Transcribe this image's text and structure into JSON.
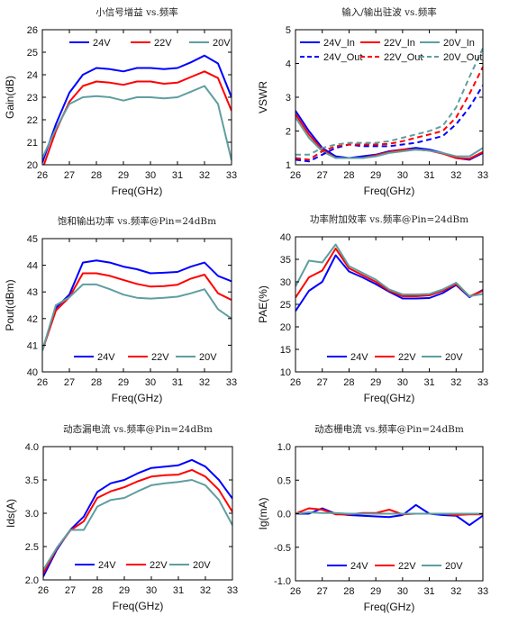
{
  "chart_data": [
    {
      "type": "line",
      "title": "小信号增益 vs.频率",
      "xlabel": "Freq(GHz)",
      "ylabel": "Gain(dB)",
      "xlim": [
        26,
        33
      ],
      "ylim": [
        20,
        26
      ],
      "xticks": [
        26,
        27,
        28,
        29,
        30,
        31,
        32,
        33
      ],
      "yticks": [
        20,
        21,
        22,
        23,
        24,
        25,
        26
      ],
      "legend": "top",
      "x": [
        26,
        26.5,
        27,
        27.5,
        28,
        28.5,
        29,
        29.5,
        30,
        30.5,
        31,
        31.5,
        32,
        32.5,
        33
      ],
      "series": [
        {
          "name": "24V",
          "color": "#0000ff",
          "dash": "solid",
          "values": [
            20.1,
            21.8,
            23.2,
            24.0,
            24.3,
            24.25,
            24.15,
            24.3,
            24.3,
            24.25,
            24.3,
            24.55,
            24.85,
            24.5,
            23.0
          ]
        },
        {
          "name": "22V",
          "color": "#ff0000",
          "dash": "solid",
          "values": [
            19.8,
            21.5,
            22.8,
            23.5,
            23.7,
            23.65,
            23.55,
            23.7,
            23.7,
            23.6,
            23.65,
            23.9,
            24.15,
            23.85,
            22.4
          ]
        },
        {
          "name": "20V",
          "color": "#5f9ea0",
          "dash": "solid",
          "values": [
            20.3,
            21.6,
            22.7,
            23.0,
            23.05,
            23.0,
            22.85,
            23.0,
            23.0,
            22.95,
            23.0,
            23.25,
            23.5,
            22.7,
            20.2
          ]
        }
      ]
    },
    {
      "type": "line",
      "title": "输入/输出驻波 vs.频率",
      "xlabel": "Freq(GHz)",
      "ylabel": "VSWR",
      "xlim": [
        26,
        33
      ],
      "ylim": [
        1,
        5
      ],
      "xticks": [
        26,
        27,
        28,
        29,
        30,
        31,
        32,
        33
      ],
      "yticks": [
        1,
        2,
        3,
        4,
        5
      ],
      "legend": "top",
      "x": [
        26,
        26.5,
        27,
        27.5,
        28,
        28.5,
        29,
        29.5,
        30,
        30.5,
        31,
        31.5,
        32,
        32.5,
        33
      ],
      "series": [
        {
          "name": "24V_In",
          "color": "#0000ff",
          "dash": "solid",
          "values": [
            2.6,
            2.0,
            1.5,
            1.25,
            1.2,
            1.25,
            1.3,
            1.4,
            1.45,
            1.5,
            1.45,
            1.35,
            1.2,
            1.15,
            1.35
          ]
        },
        {
          "name": "22V_In",
          "color": "#ff0000",
          "dash": "solid",
          "values": [
            2.5,
            1.9,
            1.45,
            1.2,
            1.2,
            1.2,
            1.28,
            1.38,
            1.45,
            1.45,
            1.42,
            1.33,
            1.2,
            1.18,
            1.38
          ]
        },
        {
          "name": "20V_In",
          "color": "#5f9ea0",
          "dash": "solid",
          "values": [
            2.4,
            1.8,
            1.4,
            1.2,
            1.2,
            1.2,
            1.25,
            1.35,
            1.4,
            1.45,
            1.42,
            1.35,
            1.25,
            1.25,
            1.5
          ]
        },
        {
          "name": "24V_Out",
          "color": "#0000ff",
          "dash": "dashed",
          "values": [
            1.15,
            1.1,
            1.3,
            1.5,
            1.6,
            1.55,
            1.55,
            1.55,
            1.6,
            1.65,
            1.75,
            1.85,
            2.2,
            2.7,
            3.35
          ]
        },
        {
          "name": "22V_Out",
          "color": "#ff0000",
          "dash": "dashed",
          "values": [
            1.2,
            1.15,
            1.4,
            1.55,
            1.6,
            1.6,
            1.6,
            1.62,
            1.7,
            1.8,
            1.9,
            2.0,
            2.4,
            3.1,
            3.9
          ]
        },
        {
          "name": "20V_Out",
          "color": "#5f9ea0",
          "dash": "dashed",
          "values": [
            1.3,
            1.3,
            1.5,
            1.6,
            1.65,
            1.65,
            1.65,
            1.7,
            1.8,
            1.9,
            2.0,
            2.15,
            2.7,
            3.6,
            4.45
          ]
        }
      ]
    },
    {
      "type": "line",
      "title": "饱和输出功率 vs.频率@Pin=24dBm",
      "xlabel": "Freq(GHz)",
      "ylabel": "Pout(dBm)",
      "xlim": [
        26,
        33
      ],
      "ylim": [
        40,
        45
      ],
      "xticks": [
        26,
        27,
        28,
        29,
        30,
        31,
        32,
        33
      ],
      "yticks": [
        40,
        41,
        42,
        43,
        44,
        45
      ],
      "legend": "bottom",
      "x": [
        26,
        26.5,
        27,
        27.5,
        28,
        28.5,
        29,
        29.5,
        30,
        30.5,
        31,
        31.5,
        32,
        32.5,
        33
      ],
      "series": [
        {
          "name": "24V",
          "color": "#0000ff",
          "dash": "solid",
          "values": [
            40.8,
            42.4,
            42.9,
            44.1,
            44.18,
            44.1,
            43.95,
            43.85,
            43.7,
            43.72,
            43.75,
            43.95,
            44.1,
            43.6,
            43.4
          ]
        },
        {
          "name": "22V",
          "color": "#ff0000",
          "dash": "solid",
          "values": [
            40.8,
            42.3,
            42.8,
            43.7,
            43.7,
            43.6,
            43.45,
            43.3,
            43.2,
            43.22,
            43.27,
            43.5,
            43.65,
            42.95,
            42.7
          ]
        },
        {
          "name": "20V",
          "color": "#5f9ea0",
          "dash": "solid",
          "values": [
            40.8,
            42.5,
            42.8,
            43.28,
            43.28,
            43.1,
            42.9,
            42.78,
            42.75,
            42.78,
            42.82,
            42.95,
            43.1,
            42.35,
            42.0
          ]
        }
      ]
    },
    {
      "type": "line",
      "title": "功率附加效率 vs.频率@Pin=24dBm",
      "xlabel": "Freq(GHz)",
      "ylabel": "PAE(%)",
      "xlim": [
        26,
        33
      ],
      "ylim": [
        10,
        40
      ],
      "xticks": [
        26,
        27,
        28,
        29,
        30,
        31,
        32,
        33
      ],
      "yticks": [
        10,
        15,
        20,
        25,
        30,
        35,
        40
      ],
      "legend": "bottom",
      "x": [
        26,
        26.5,
        27,
        27.5,
        28,
        28.5,
        29,
        29.5,
        30,
        30.5,
        31,
        31.5,
        32,
        32.5,
        33
      ],
      "series": [
        {
          "name": "24V",
          "color": "#0000ff",
          "dash": "solid",
          "values": [
            23.5,
            28.0,
            30.0,
            35.9,
            32.3,
            31.0,
            29.5,
            27.8,
            26.3,
            26.3,
            26.4,
            27.5,
            29.3,
            26.6,
            28.2
          ]
        },
        {
          "name": "22V",
          "color": "#ff0000",
          "dash": "solid",
          "values": [
            26.5,
            31.0,
            32.5,
            37.4,
            33.0,
            31.5,
            30.0,
            28.0,
            26.8,
            26.8,
            27.0,
            28.0,
            29.5,
            26.8,
            28.0
          ]
        },
        {
          "name": "20V",
          "color": "#5f9ea0",
          "dash": "solid",
          "values": [
            29.0,
            34.7,
            34.3,
            38.3,
            33.5,
            32.0,
            30.5,
            28.3,
            27.2,
            27.2,
            27.3,
            28.3,
            29.8,
            26.8,
            27.3
          ]
        }
      ]
    },
    {
      "type": "line",
      "title": "动态漏电流 vs.频率@Pin=24dBm",
      "xlabel": "Freq(GHz)",
      "ylabel": "Ids(A)",
      "xlim": [
        26,
        33
      ],
      "ylim": [
        2.0,
        4.0
      ],
      "xticks": [
        26,
        27,
        28,
        29,
        30,
        31,
        32,
        33
      ],
      "yticks": [
        2.0,
        2.5,
        3.0,
        3.5,
        4.0
      ],
      "ytick_labels": [
        "2.0",
        "2.5",
        "3.0",
        "3.5",
        "4.0"
      ],
      "legend": "bottom",
      "x": [
        26,
        26.5,
        27,
        27.5,
        28,
        28.5,
        29,
        29.5,
        30,
        30.5,
        31,
        31.5,
        32,
        32.5,
        33
      ],
      "series": [
        {
          "name": "24V",
          "color": "#0000ff",
          "dash": "solid",
          "values": [
            2.05,
            2.45,
            2.75,
            2.95,
            3.32,
            3.45,
            3.5,
            3.6,
            3.68,
            3.7,
            3.72,
            3.8,
            3.7,
            3.5,
            3.22
          ]
        },
        {
          "name": "22V",
          "color": "#ff0000",
          "dash": "solid",
          "values": [
            2.1,
            2.47,
            2.74,
            2.88,
            3.23,
            3.33,
            3.39,
            3.48,
            3.55,
            3.57,
            3.58,
            3.65,
            3.55,
            3.35,
            3.02
          ]
        },
        {
          "name": "20V",
          "color": "#5f9ea0",
          "dash": "solid",
          "values": [
            2.15,
            2.48,
            2.75,
            2.75,
            3.1,
            3.2,
            3.23,
            3.33,
            3.42,
            3.45,
            3.47,
            3.5,
            3.42,
            3.2,
            2.82
          ]
        }
      ]
    },
    {
      "type": "line",
      "title": "动态栅电流 vs.频率@Pin=24dBm",
      "xlabel": "Freq(GHz)",
      "ylabel": "Ig(mA)",
      "xlim": [
        26,
        33
      ],
      "ylim": [
        -1.0,
        1.0
      ],
      "xticks": [
        26,
        27,
        28,
        29,
        30,
        31,
        32,
        33
      ],
      "yticks": [
        -1.0,
        -0.5,
        0.0,
        0.5,
        1.0
      ],
      "ytick_labels": [
        "-1.0",
        "-0.5",
        "0.0",
        "0.5",
        "1.0"
      ],
      "legend": "bottom",
      "x": [
        26,
        26.5,
        27,
        27.5,
        28,
        28.5,
        29,
        29.5,
        30,
        30.5,
        31,
        31.5,
        32,
        32.5,
        33
      ],
      "series": [
        {
          "name": "24V",
          "color": "#0000ff",
          "dash": "solid",
          "values": [
            0.0,
            0.0,
            0.08,
            0.0,
            -0.02,
            -0.03,
            -0.04,
            -0.05,
            -0.02,
            0.13,
            0.0,
            -0.02,
            -0.03,
            -0.17,
            -0.03
          ]
        },
        {
          "name": "22V",
          "color": "#ff0000",
          "dash": "solid",
          "values": [
            0.0,
            0.08,
            0.06,
            -0.01,
            -0.01,
            0.01,
            0.01,
            0.06,
            -0.01,
            0.0,
            0.0,
            0.0,
            -0.02,
            -0.01,
            -0.01
          ]
        },
        {
          "name": "20V",
          "color": "#5f9ea0",
          "dash": "solid",
          "values": [
            0.0,
            0.02,
            0.01,
            0.01,
            0.0,
            0.0,
            0.0,
            0.0,
            0.0,
            0.0,
            0.0,
            0.0,
            0.0,
            0.0,
            0.0
          ]
        }
      ]
    }
  ]
}
